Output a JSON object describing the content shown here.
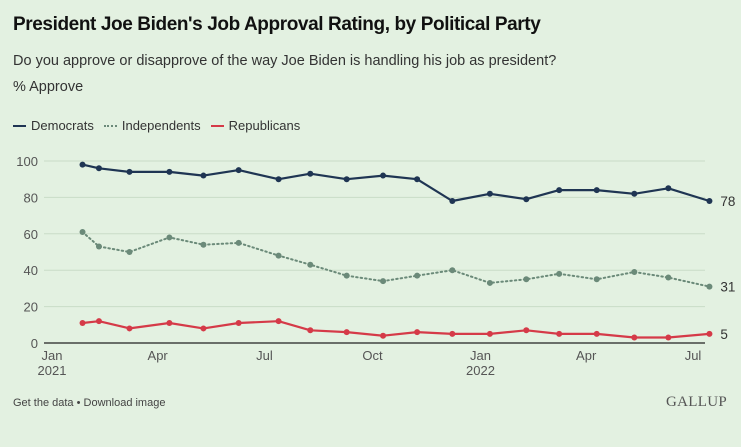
{
  "header": {
    "title": "President Joe Biden's Job Approval Rating, by Political Party",
    "subtitle": "Do you approve or disapprove of the way Joe Biden is handling his job as president?",
    "unit_label": "% Approve"
  },
  "footer": {
    "get_data": "Get the data",
    "separator": " • ",
    "download": "Download image",
    "brand": "GALLUP"
  },
  "chart_data": {
    "type": "line",
    "title": "President Joe Biden's Job Approval Rating, by Political Party",
    "subtitle": "Do you approve or disapprove of the way Joe Biden is handling his job as president?",
    "ylabel": "% Approve",
    "xlabel": "",
    "ylim": [
      0,
      100
    ],
    "yticks": [
      0,
      20,
      40,
      60,
      80,
      100
    ],
    "grid": true,
    "legend_position": "top-left",
    "xlim": [
      "2021-01-01",
      "2022-07-31"
    ],
    "xticks": [
      {
        "date": "2021-01-01",
        "label": "Jan",
        "sublabel": "2021"
      },
      {
        "date": "2021-04-01",
        "label": "Apr",
        "sublabel": ""
      },
      {
        "date": "2021-07-01",
        "label": "Jul",
        "sublabel": ""
      },
      {
        "date": "2021-10-01",
        "label": "Oct",
        "sublabel": ""
      },
      {
        "date": "2022-01-01",
        "label": "Jan",
        "sublabel": "2022"
      },
      {
        "date": "2022-04-01",
        "label": "Apr",
        "sublabel": ""
      },
      {
        "date": "2022-07-01",
        "label": "Jul",
        "sublabel": ""
      }
    ],
    "x": [
      "2021-01-27",
      "2021-02-10",
      "2021-03-08",
      "2021-04-11",
      "2021-05-10",
      "2021-06-09",
      "2021-07-13",
      "2021-08-09",
      "2021-09-09",
      "2021-10-10",
      "2021-11-08",
      "2021-12-08",
      "2022-01-09",
      "2022-02-09",
      "2022-03-09",
      "2022-04-10",
      "2022-05-12",
      "2022-06-10",
      "2022-07-15"
    ],
    "series": [
      {
        "name": "Democrats",
        "color": "#1f3553",
        "style": "solid",
        "values": [
          98,
          96,
          94,
          94,
          92,
          95,
          90,
          93,
          90,
          92,
          90,
          78,
          82,
          79,
          84,
          84,
          82,
          85,
          78
        ],
        "end_label": "78"
      },
      {
        "name": "Independents",
        "color": "#6b8a79",
        "style": "dotted",
        "values": [
          61,
          53,
          50,
          58,
          54,
          55,
          48,
          43,
          37,
          34,
          37,
          40,
          33,
          35,
          38,
          35,
          39,
          36,
          31
        ],
        "end_label": "31"
      },
      {
        "name": "Republicans",
        "color": "#d53a48",
        "style": "solid",
        "values": [
          11,
          12,
          8,
          11,
          8,
          11,
          12,
          7,
          6,
          4,
          6,
          5,
          5,
          7,
          5,
          5,
          3,
          3,
          5
        ],
        "end_label": "5"
      }
    ]
  }
}
